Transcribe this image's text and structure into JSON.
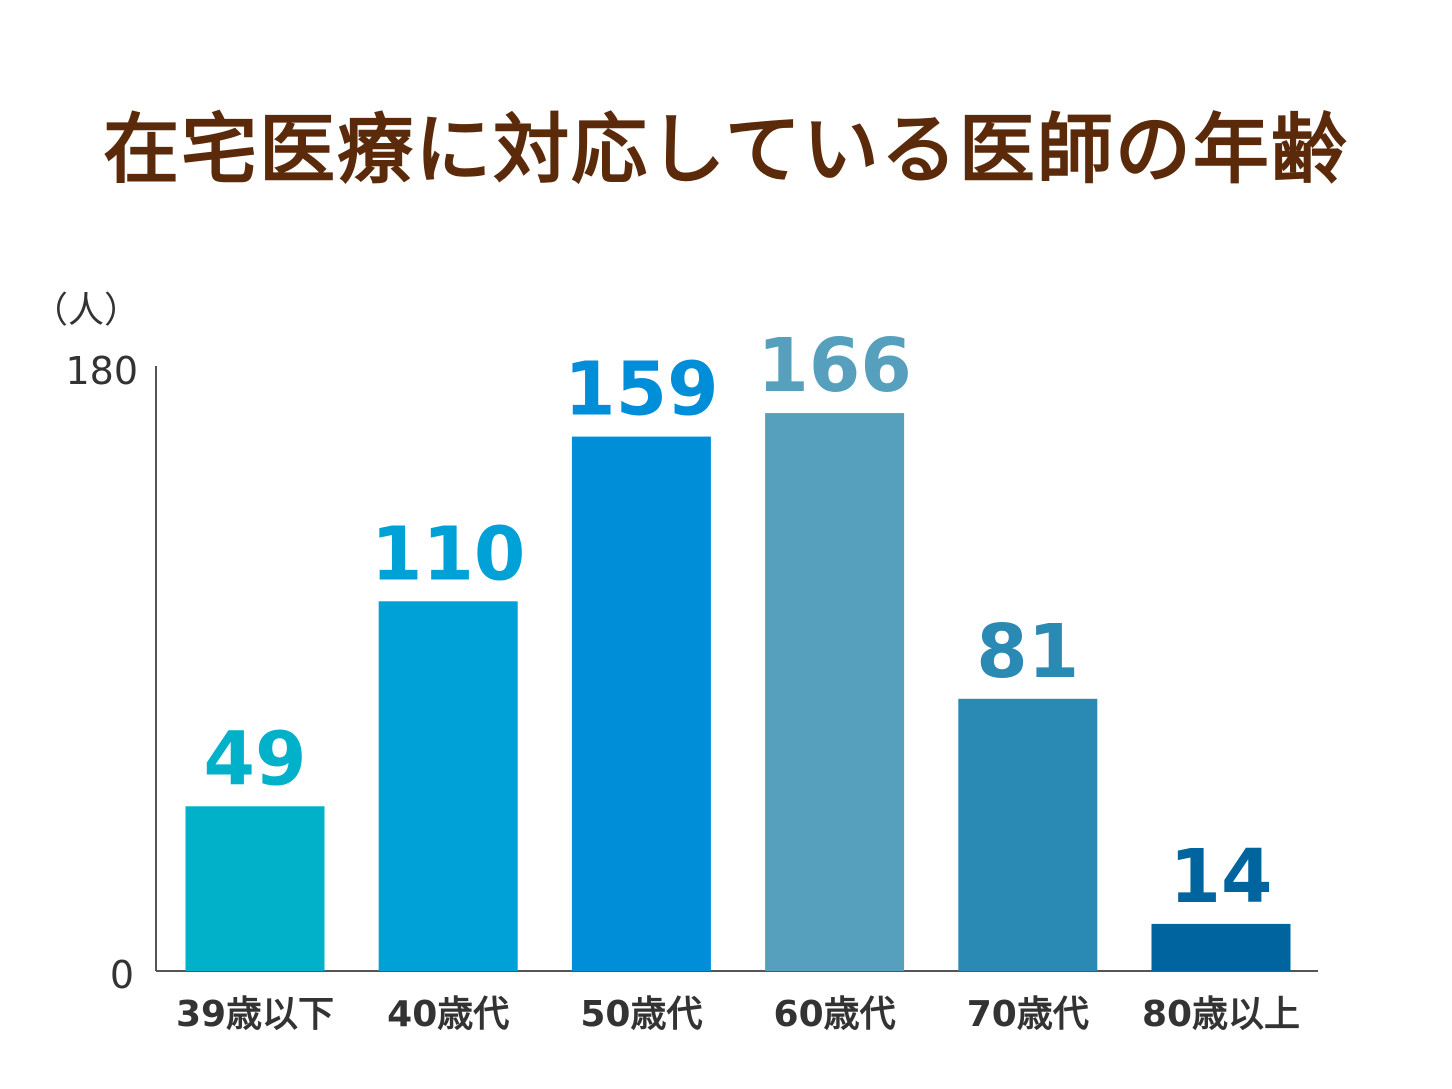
{
  "title": "在宅医療に対応している医師の年齢",
  "colors": {
    "title": "#5a2a0a",
    "axis": "#555555",
    "text": "#333333"
  },
  "chart_data": {
    "type": "bar",
    "title": "在宅医療に対応している医師の年齢",
    "ylabel": "（人）",
    "xlabel": "",
    "ylim": [
      0,
      180
    ],
    "y_ticks": [
      "0",
      "180"
    ],
    "categories": [
      "39歳以下",
      "40歳代",
      "50歳代",
      "60歳代",
      "70歳代",
      "80歳以上"
    ],
    "values": [
      49,
      110,
      159,
      166,
      81,
      14
    ],
    "bar_colors": [
      "#00b1c9",
      "#00a1d6",
      "#018ed8",
      "#56a0bd",
      "#2b8ab3",
      "#00659e"
    ],
    "data_labels": [
      "49",
      "110",
      "159",
      "166",
      "81",
      "14"
    ],
    "legend": "none",
    "grid": false
  }
}
